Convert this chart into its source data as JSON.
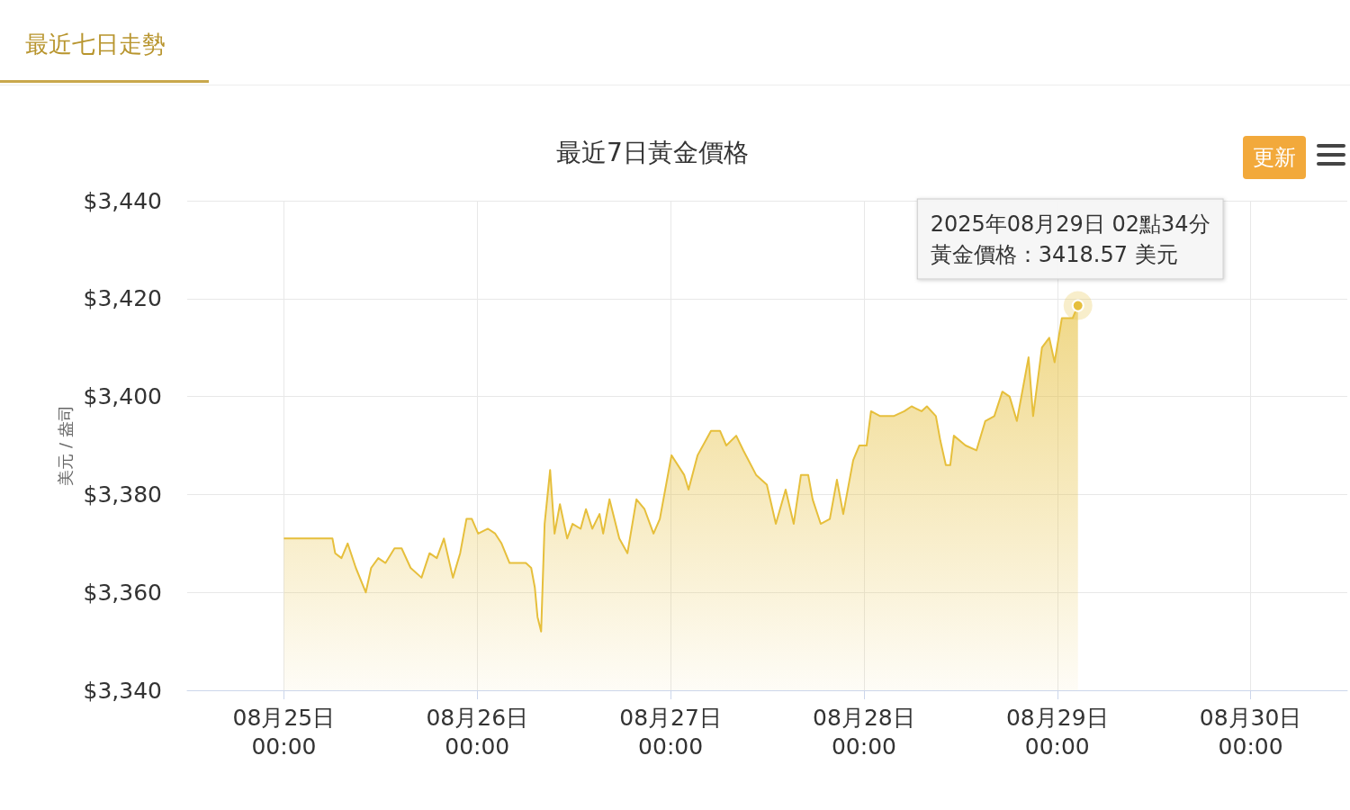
{
  "chart_data": {
    "type": "area",
    "title": "最近7日黃金價格",
    "ylabel": "美元 / 盎司",
    "annotations": [
      "最近七日走勢",
      "更新",
      "2025年08月29日 02點34分",
      "黃金價格：3418.57 美元"
    ],
    "xlim": [
      "2025-08-24T12:00",
      "2025-08-30T12:00"
    ],
    "xticks": [
      {
        "value": "2025-08-25T00:00",
        "label": "08月25日\n00:00"
      },
      {
        "value": "2025-08-26T00:00",
        "label": "08月26日\n00:00"
      },
      {
        "value": "2025-08-27T00:00",
        "label": "08月27日\n00:00"
      },
      {
        "value": "2025-08-28T00:00",
        "label": "08月28日\n00:00"
      },
      {
        "value": "2025-08-29T00:00",
        "label": "08月29日\n00:00"
      },
      {
        "value": "2025-08-30T00:00",
        "label": "08月30日\n00:00"
      }
    ],
    "ylim": [
      3340,
      3440
    ],
    "yticks": [
      {
        "value": 3340,
        "label": "$3,340"
      },
      {
        "value": 3360,
        "label": "$3,360"
      },
      {
        "value": 3380,
        "label": "$3,380"
      },
      {
        "value": 3400,
        "label": "$3,400"
      },
      {
        "value": 3420,
        "label": "$3,420"
      },
      {
        "value": 3440,
        "label": "$3,440"
      }
    ],
    "grid": true,
    "marker": "none",
    "line_style": "solid",
    "series": [
      {
        "color": "#e6bf3c",
        "x": [
          "2025-08-25T00:00",
          "2025-08-25T06:02",
          "2025-08-25T06:22",
          "2025-08-25T07:09",
          "2025-08-25T07:55",
          "2025-08-25T08:56",
          "2025-08-25T10:10",
          "2025-08-25T10:50",
          "2025-08-25T11:43",
          "2025-08-25T12:37",
          "2025-08-25T13:44",
          "2025-08-25T14:37",
          "2025-08-25T15:44",
          "2025-08-25T17:05",
          "2025-08-25T18:05",
          "2025-08-25T18:59",
          "2025-08-25T19:52",
          "2025-08-25T20:59",
          "2025-08-25T21:53",
          "2025-08-25T22:40",
          "2025-08-25T23:20",
          "2025-08-26T00:07",
          "2025-08-26T01:20",
          "2025-08-26T02:14",
          "2025-08-26T03:01",
          "2025-08-26T04:01",
          "2025-08-26T04:41",
          "2025-08-26T06:02",
          "2025-08-26T06:42",
          "2025-08-26T07:09",
          "2025-08-26T07:29",
          "2025-08-26T07:56",
          "2025-08-26T08:22",
          "2025-08-26T09:03",
          "2025-08-26T09:36",
          "2025-08-26T10:16",
          "2025-08-26T11:10",
          "2025-08-26T11:50",
          "2025-08-26T12:50",
          "2025-08-26T13:30",
          "2025-08-26T14:17",
          "2025-08-26T15:11",
          "2025-08-26T15:38",
          "2025-08-26T16:25",
          "2025-08-26T17:38",
          "2025-08-26T18:39",
          "2025-08-26T19:46",
          "2025-08-26T20:46",
          "2025-08-26T21:53",
          "2025-08-26T22:40",
          "2025-08-27T00:07",
          "2025-08-27T01:41",
          "2025-08-27T02:14",
          "2025-08-27T03:21",
          "2025-08-27T05:01",
          "2025-08-27T06:08",
          "2025-08-27T06:55",
          "2025-08-27T08:09",
          "2025-08-27T09:02",
          "2025-08-27T10:37",
          "2025-08-27T11:57",
          "2025-08-27T13:04",
          "2025-08-27T14:17",
          "2025-08-27T15:17",
          "2025-08-27T16:11",
          "2025-08-27T17:05",
          "2025-08-27T17:38",
          "2025-08-27T18:38",
          "2025-08-27T19:46",
          "2025-08-27T20:39",
          "2025-08-27T21:26",
          "2025-08-27T22:40",
          "2025-08-27T23:26",
          "2025-08-28T00:20",
          "2025-08-28T00:53",
          "2025-08-28T02:01",
          "2025-08-28T03:41",
          "2025-08-28T05:01",
          "2025-08-28T05:55",
          "2025-08-28T07:09",
          "2025-08-28T07:49",
          "2025-08-28T08:56",
          "2025-08-28T09:29",
          "2025-08-28T10:10",
          "2025-08-28T10:43",
          "2025-08-28T11:10",
          "2025-08-28T12:37",
          "2025-08-28T13:58",
          "2025-08-28T15:04",
          "2025-08-28T16:11",
          "2025-08-28T17:11",
          "2025-08-28T18:05",
          "2025-08-28T18:59",
          "2025-08-28T19:46",
          "2025-08-28T20:26",
          "2025-08-28T21:00",
          "2025-08-28T22:06",
          "2025-08-28T23:00",
          "2025-08-28T23:40",
          "2025-08-29T00:34",
          "2025-08-29T01:54",
          "2025-08-29T02:34"
        ],
        "values": [
          3371,
          3371,
          3368,
          3367,
          3370,
          3365,
          3360,
          3365,
          3367,
          3366,
          3369,
          3369,
          3365,
          3363,
          3368,
          3367,
          3371,
          3363,
          3368,
          3375,
          3375,
          3372,
          3373,
          3372,
          3370,
          3366,
          3366,
          3366,
          3365,
          3361,
          3355,
          3352,
          3374,
          3385,
          3372,
          3378,
          3371,
          3374,
          3373,
          3377,
          3373,
          3376,
          3372,
          3379,
          3371,
          3368,
          3379,
          3377,
          3372,
          3375,
          3388,
          3384,
          3381,
          3388,
          3393,
          3393,
          3390,
          3392,
          3389,
          3384,
          3382,
          3374,
          3381,
          3374,
          3384,
          3384,
          3379,
          3374,
          3375,
          3383,
          3376,
          3387,
          3390,
          3390,
          3397,
          3396,
          3396,
          3397,
          3398,
          3397,
          3398,
          3396,
          3391,
          3386,
          3386,
          3392,
          3390,
          3389,
          3395,
          3396,
          3401,
          3400,
          3395,
          3402,
          3408,
          3396,
          3410,
          3412,
          3407,
          3416,
          3416,
          3418.57
        ]
      }
    ]
  }
}
